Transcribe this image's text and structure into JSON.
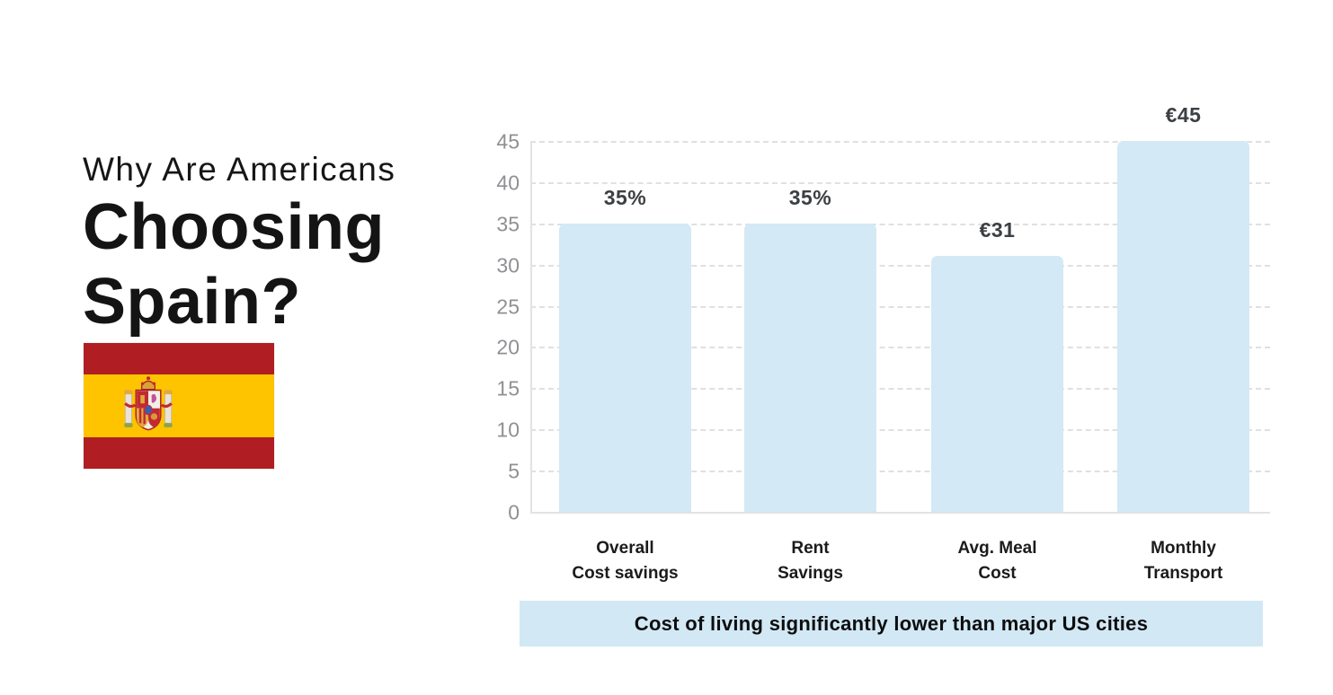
{
  "title": {
    "line1": "Why Are Americans",
    "line2": "Choosing",
    "line3": "Spain?"
  },
  "flag": {
    "icon": "spain-flag-icon",
    "red": "#B01E23",
    "yellow": "#FFC400"
  },
  "chart_data": {
    "type": "bar",
    "categories": [
      [
        "Overall",
        "Cost savings"
      ],
      [
        "Rent",
        "Savings"
      ],
      [
        "Avg. Meal",
        "Cost"
      ],
      [
        "Monthly",
        "Transport"
      ]
    ],
    "values": [
      35,
      35,
      31,
      45
    ],
    "value_labels": [
      "35%",
      "35%",
      "€31",
      "€45"
    ],
    "y_ticks": [
      0,
      5,
      10,
      15,
      20,
      25,
      30,
      35,
      40,
      45
    ],
    "ylim": [
      0,
      45
    ],
    "grid": "horizontal dashed",
    "legend": "none",
    "bar_color": "#d3e9f5",
    "caption": "Cost of living significantly lower than major US cities",
    "caption_bg": "#d2e8f5"
  }
}
